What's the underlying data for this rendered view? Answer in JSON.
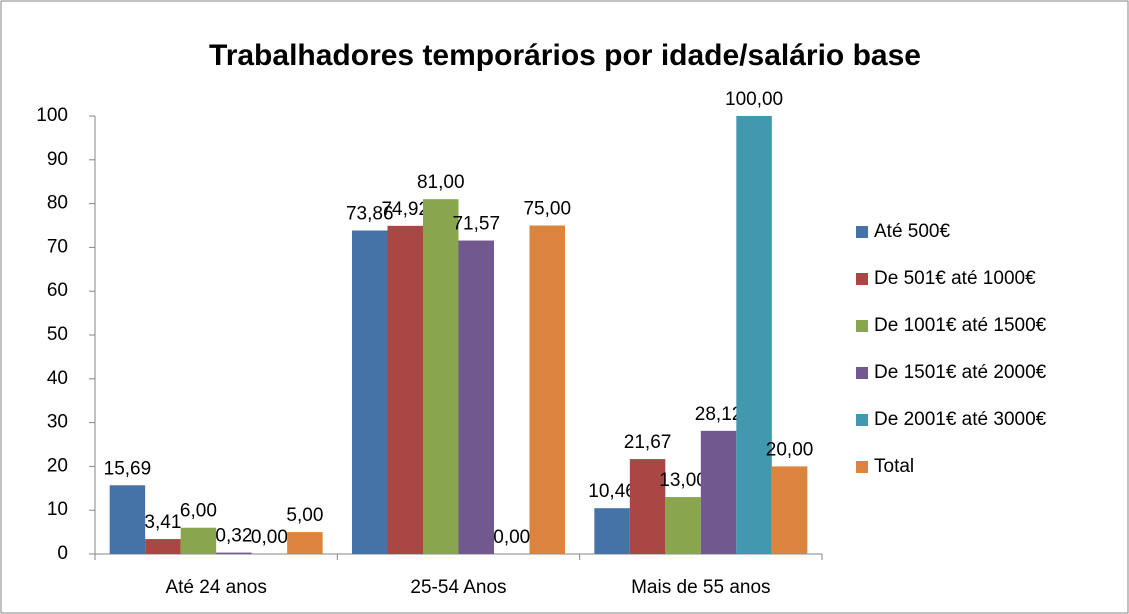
{
  "chart_data": {
    "type": "bar",
    "title": "Trabalhadores temporários por idade/salário base",
    "categories": [
      "Até 24 anos",
      "25-54 Anos",
      "Mais de 55 anos"
    ],
    "series": [
      {
        "name": "Até 500€",
        "color": "#4572a7",
        "values": [
          15.69,
          73.86,
          10.46
        ],
        "value_labels": [
          "15,69",
          "73,86",
          "10,46"
        ]
      },
      {
        "name": "De 501€ até 1000€",
        "color": "#aa4643",
        "values": [
          3.41,
          74.92,
          21.67
        ],
        "value_labels": [
          "3,41",
          "74,92",
          "21,67"
        ]
      },
      {
        "name": "De 1001€ até 1500€",
        "color": "#89a54e",
        "values": [
          6.0,
          81.0,
          13.0
        ],
        "value_labels": [
          "6,00",
          "81,00",
          "13,00"
        ]
      },
      {
        "name": "De 1501€ até 2000€",
        "color": "#71588f",
        "values": [
          0.32,
          71.57,
          28.12
        ],
        "value_labels": [
          "0,32",
          "71,57",
          "28,12"
        ]
      },
      {
        "name": "De 2001€ até 3000€",
        "color": "#4198af",
        "values": [
          0.0,
          0.0,
          100.0
        ],
        "value_labels": [
          "0,00",
          "0,00",
          "100,00"
        ]
      },
      {
        "name": "Total",
        "color": "#db843d",
        "values": [
          5.0,
          75.0,
          20.0
        ],
        "value_labels": [
          "5,00",
          "75,00",
          "20,00"
        ]
      }
    ],
    "ylim": [
      0,
      100
    ],
    "yticks": [
      0,
      10,
      20,
      30,
      40,
      50,
      60,
      70,
      80,
      90,
      100
    ],
    "grid": false,
    "legend": "right"
  }
}
